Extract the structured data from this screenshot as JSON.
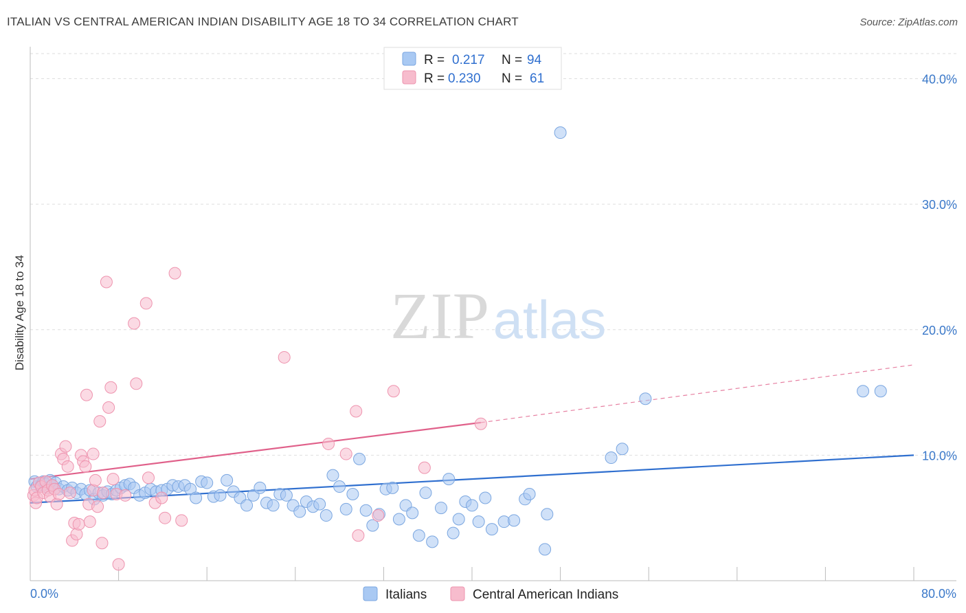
{
  "title": "ITALIAN VS CENTRAL AMERICAN INDIAN DISABILITY AGE 18 TO 34 CORRELATION CHART",
  "source": "Source: ZipAtlas.com",
  "watermark": {
    "zip": "ZIP",
    "atlas": "atlas"
  },
  "legend": {
    "r_label": "R =",
    "n_label": "N =",
    "rows": [
      {
        "r": "0.217",
        "n": "94",
        "color": "#a9c9f3",
        "stroke": "#7aa6e0"
      },
      {
        "r": "0.230",
        "n": "61",
        "color": "#f7bccd",
        "stroke": "#ee93ae"
      }
    ]
  },
  "bottom_legend": [
    {
      "label": "Italians",
      "color": "#a9c9f3",
      "stroke": "#7aa6e0"
    },
    {
      "label": "Central American Indians",
      "color": "#f7bccd",
      "stroke": "#ee93ae"
    }
  ],
  "chart_data": {
    "type": "scatter",
    "title": "ITALIAN VS CENTRAL AMERICAN INDIAN DISABILITY AGE 18 TO 34 CORRELATION CHART",
    "xlabel": "",
    "ylabel": "Disability Age 18 to 34",
    "xlim": [
      0,
      80
    ],
    "ylim": [
      0,
      42
    ],
    "x_tick_labels": [
      "0.0%",
      "80.0%"
    ],
    "y_ticks": [
      10,
      20,
      30,
      40
    ],
    "y_tick_labels": [
      "10.0%",
      "20.0%",
      "30.0%",
      "40.0%"
    ],
    "grid": true,
    "series": [
      {
        "name": "Italians",
        "color": "#a9c9f3",
        "stroke": "#7aa6e0",
        "points": [
          [
            0.4,
            7.9
          ],
          [
            0.6,
            7.5
          ],
          [
            0.8,
            7.8
          ],
          [
            1.0,
            7.6
          ],
          [
            1.2,
            7.9
          ],
          [
            1.4,
            7.7
          ],
          [
            1.6,
            7.4
          ],
          [
            1.8,
            8.0
          ],
          [
            2.0,
            7.6
          ],
          [
            2.3,
            7.8
          ],
          [
            2.6,
            7.3
          ],
          [
            3.0,
            7.5
          ],
          [
            3.4,
            7.2
          ],
          [
            3.8,
            7.4
          ],
          [
            4.2,
            7.0
          ],
          [
            4.6,
            7.3
          ],
          [
            5.0,
            6.9
          ],
          [
            5.4,
            7.2
          ],
          [
            5.8,
            6.5
          ],
          [
            6.2,
            7.0
          ],
          [
            6.6,
            6.8
          ],
          [
            7.0,
            7.1
          ],
          [
            7.4,
            6.9
          ],
          [
            7.8,
            7.2
          ],
          [
            8.2,
            7.4
          ],
          [
            8.6,
            7.6
          ],
          [
            9.0,
            7.7
          ],
          [
            9.4,
            7.4
          ],
          [
            9.9,
            6.8
          ],
          [
            10.4,
            7.0
          ],
          [
            10.9,
            7.3
          ],
          [
            11.4,
            7.1
          ],
          [
            11.9,
            7.2
          ],
          [
            12.4,
            7.3
          ],
          [
            12.9,
            7.6
          ],
          [
            13.4,
            7.5
          ],
          [
            14.0,
            7.6
          ],
          [
            14.5,
            7.3
          ],
          [
            15.0,
            6.6
          ],
          [
            15.5,
            7.9
          ],
          [
            16.0,
            7.8
          ],
          [
            16.6,
            6.7
          ],
          [
            17.2,
            6.8
          ],
          [
            17.8,
            8.0
          ],
          [
            18.4,
            7.1
          ],
          [
            19.0,
            6.6
          ],
          [
            19.6,
            6.0
          ],
          [
            20.2,
            6.8
          ],
          [
            20.8,
            7.4
          ],
          [
            21.4,
            6.2
          ],
          [
            22.0,
            6.0
          ],
          [
            22.6,
            6.9
          ],
          [
            23.2,
            6.8
          ],
          [
            23.8,
            6.0
          ],
          [
            24.4,
            5.5
          ],
          [
            25.0,
            6.3
          ],
          [
            25.6,
            5.9
          ],
          [
            26.2,
            6.1
          ],
          [
            26.8,
            5.2
          ],
          [
            27.4,
            8.4
          ],
          [
            28.0,
            7.5
          ],
          [
            28.6,
            5.7
          ],
          [
            29.2,
            6.9
          ],
          [
            29.8,
            9.7
          ],
          [
            30.4,
            5.6
          ],
          [
            31.0,
            4.4
          ],
          [
            31.6,
            5.3
          ],
          [
            32.2,
            7.3
          ],
          [
            32.8,
            7.4
          ],
          [
            33.4,
            4.9
          ],
          [
            34.0,
            6.0
          ],
          [
            34.6,
            5.4
          ],
          [
            35.2,
            3.6
          ],
          [
            35.8,
            7.0
          ],
          [
            36.4,
            3.1
          ],
          [
            37.2,
            5.8
          ],
          [
            37.9,
            8.1
          ],
          [
            38.3,
            3.8
          ],
          [
            38.8,
            4.9
          ],
          [
            39.4,
            6.3
          ],
          [
            40.0,
            6.0
          ],
          [
            40.6,
            4.7
          ],
          [
            41.2,
            6.6
          ],
          [
            41.8,
            4.1
          ],
          [
            42.9,
            4.7
          ],
          [
            43.8,
            4.8
          ],
          [
            44.8,
            6.5
          ],
          [
            45.2,
            6.9
          ],
          [
            46.8,
            5.3
          ],
          [
            46.6,
            2.5
          ],
          [
            48.0,
            35.7
          ],
          [
            52.6,
            9.8
          ],
          [
            53.6,
            10.5
          ],
          [
            55.7,
            14.5
          ],
          [
            75.4,
            15.1
          ],
          [
            77.0,
            15.1
          ]
        ]
      },
      {
        "name": "Central American Indians",
        "color": "#f7bccd",
        "stroke": "#ee93ae",
        "points": [
          [
            0.3,
            6.8
          ],
          [
            0.4,
            7.2
          ],
          [
            0.5,
            6.2
          ],
          [
            0.6,
            6.6
          ],
          [
            0.8,
            7.8
          ],
          [
            1.0,
            7.5
          ],
          [
            1.2,
            7.0
          ],
          [
            1.4,
            7.9
          ],
          [
            1.6,
            7.2
          ],
          [
            1.8,
            6.7
          ],
          [
            2.0,
            7.6
          ],
          [
            2.2,
            7.3
          ],
          [
            2.4,
            6.1
          ],
          [
            2.6,
            6.9
          ],
          [
            2.8,
            10.1
          ],
          [
            3.0,
            9.7
          ],
          [
            3.2,
            10.7
          ],
          [
            3.4,
            9.1
          ],
          [
            3.6,
            7.0
          ],
          [
            3.8,
            3.2
          ],
          [
            4.0,
            4.6
          ],
          [
            4.2,
            3.7
          ],
          [
            4.4,
            4.5
          ],
          [
            4.6,
            10.0
          ],
          [
            4.8,
            9.5
          ],
          [
            5.0,
            9.1
          ],
          [
            5.1,
            14.8
          ],
          [
            5.3,
            6.1
          ],
          [
            5.4,
            4.7
          ],
          [
            5.7,
            10.1
          ],
          [
            5.7,
            7.2
          ],
          [
            5.9,
            8.0
          ],
          [
            6.1,
            5.9
          ],
          [
            6.3,
            12.7
          ],
          [
            6.5,
            3.0
          ],
          [
            6.6,
            7.0
          ],
          [
            6.9,
            23.8
          ],
          [
            7.1,
            13.8
          ],
          [
            7.3,
            15.4
          ],
          [
            7.5,
            8.1
          ],
          [
            7.8,
            6.9
          ],
          [
            8.0,
            1.3
          ],
          [
            8.6,
            6.8
          ],
          [
            9.4,
            20.5
          ],
          [
            9.6,
            15.7
          ],
          [
            10.5,
            22.1
          ],
          [
            10.7,
            8.2
          ],
          [
            11.3,
            6.2
          ],
          [
            11.9,
            6.6
          ],
          [
            12.2,
            5.0
          ],
          [
            13.1,
            24.5
          ],
          [
            13.7,
            4.8
          ],
          [
            23.0,
            17.8
          ],
          [
            27.0,
            10.9
          ],
          [
            28.6,
            10.1
          ],
          [
            29.5,
            13.5
          ],
          [
            29.7,
            3.6
          ],
          [
            31.5,
            5.2
          ],
          [
            32.9,
            15.1
          ],
          [
            35.7,
            9.0
          ],
          [
            40.8,
            12.5
          ]
        ]
      }
    ],
    "trendlines": [
      {
        "series": "Italians",
        "x": [
          0,
          80
        ],
        "y": [
          6.2,
          10.0
        ],
        "color": "#2f6fcf",
        "dashed_extension": false
      },
      {
        "series": "Central American Indians",
        "x": [
          0,
          40.8,
          80
        ],
        "y": [
          8.1,
          12.6,
          17.2
        ],
        "color": "#e0608a",
        "solid_until": 40.8
      }
    ]
  }
}
